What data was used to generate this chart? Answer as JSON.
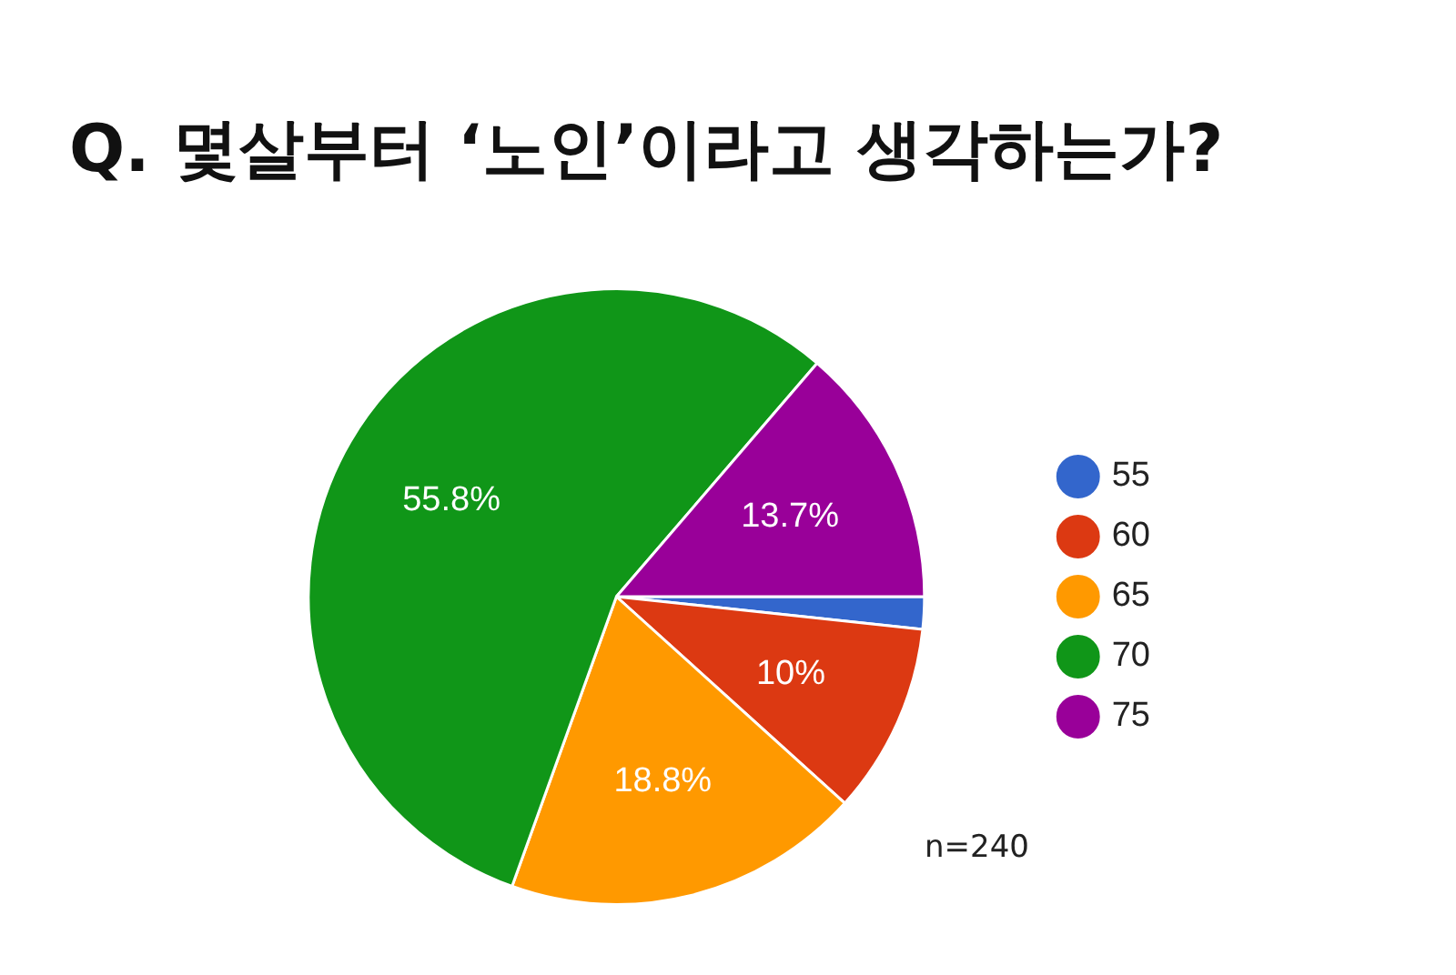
{
  "chart_data": {
    "type": "pie",
    "title": "Q. 몇살부터 ‘노인’이라고 생각하는가?",
    "categories": [
      "55",
      "60",
      "65",
      "70",
      "75"
    ],
    "values": [
      1.7,
      10,
      18.8,
      55.8,
      13.7
    ],
    "value_labels": [
      null,
      "10%",
      "18.8%",
      "55.8%",
      "13.7%"
    ],
    "colors": [
      "#3366cc",
      "#dc3912",
      "#ff9900",
      "#109618",
      "#990099"
    ],
    "legend": "right",
    "annotations": [
      "n=240"
    ]
  }
}
